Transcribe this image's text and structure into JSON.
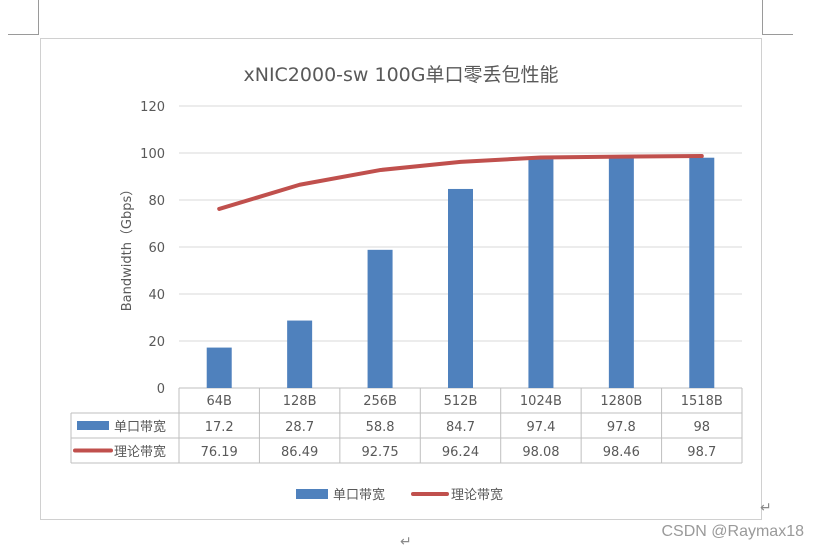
{
  "chart_data": {
    "type": "bar",
    "title": "xNIC2000-sw  100G单口零丢包性能",
    "ylabel": "Bandwidth（Gbps）",
    "xlabel": "",
    "ylim": [
      0,
      120
    ],
    "yticks": [
      "0",
      "20",
      "40",
      "60",
      "80",
      "100",
      "120"
    ],
    "grid": true,
    "legend_position": "bottom",
    "categories": [
      "64B",
      "128B",
      "256B",
      "512B",
      "1024B",
      "1280B",
      "1518B"
    ],
    "series": [
      {
        "name": "单口带宽",
        "kind": "bar",
        "color": "#4f81bd",
        "values": [
          17.2,
          28.7,
          58.8,
          84.7,
          97.4,
          97.8,
          98
        ],
        "labels": [
          "17.2",
          "28.7",
          "58.8",
          "84.7",
          "97.4",
          "97.8",
          "98"
        ]
      },
      {
        "name": "理论带宽",
        "kind": "line",
        "color": "#c0504d",
        "values": [
          76.19,
          86.49,
          92.75,
          96.24,
          98.08,
          98.46,
          98.7
        ],
        "labels": [
          "76.19",
          "86.49",
          "92.75",
          "96.24",
          "98.08",
          "98.46",
          "98.7"
        ]
      }
    ]
  },
  "watermark": "CSDN @Raymax18",
  "return_marks": [
    "↵",
    "↵"
  ]
}
